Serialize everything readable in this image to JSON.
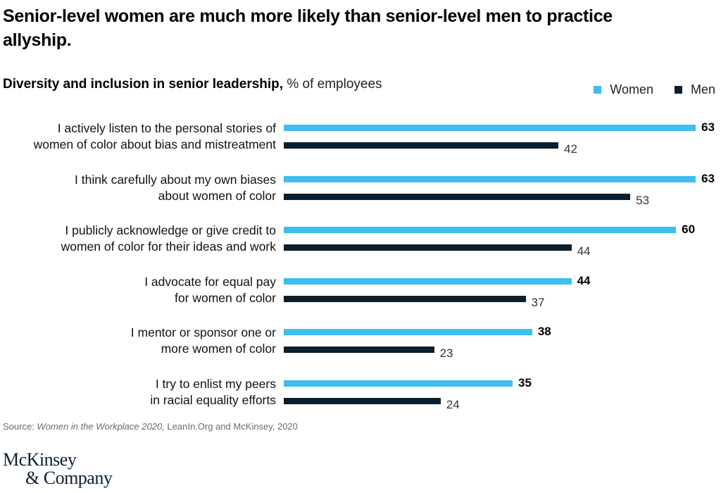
{
  "title": "Senior-level women are much more likely than senior-level men to practice allyship.",
  "subtitle": {
    "bold": "Diversity and inclusion in senior leadership,",
    "unit": "% of employees"
  },
  "colors": {
    "women": "#3dbdf0",
    "men": "#0b1e2d"
  },
  "legend": [
    {
      "name": "Women",
      "color_key": "women"
    },
    {
      "name": "Men",
      "color_key": "men"
    }
  ],
  "chart_data": {
    "type": "bar",
    "orientation": "horizontal",
    "title": "Diversity and inclusion in senior leadership",
    "xlabel": "% of employees",
    "ylabel": "",
    "xlim": [
      0,
      63
    ],
    "grid": false,
    "legend_position": "top-right",
    "categories": [
      [
        "I actively listen to the personal stories of",
        "women of color about bias and mistreatment"
      ],
      [
        "I think carefully about my own biases",
        "about women of color"
      ],
      [
        "I publicly acknowledge or give credit to",
        "women of color for their ideas and work"
      ],
      [
        "I advocate for equal pay",
        "for women of color"
      ],
      [
        "I mentor or sponsor one or",
        "more women of color"
      ],
      [
        "I try to enlist my peers",
        "in racial equality efforts"
      ]
    ],
    "series": [
      {
        "name": "Women",
        "values": [
          63,
          63,
          60,
          44,
          38,
          35
        ]
      },
      {
        "name": "Men",
        "values": [
          42,
          53,
          44,
          37,
          23,
          24
        ]
      }
    ]
  },
  "source": {
    "prefix": "Source: ",
    "italic": "Women in the Workplace 2020,",
    "rest": " LeanIn.Org and McKinsey, 2020"
  },
  "logo": {
    "line1": "McKinsey",
    "line2": "& Company"
  }
}
